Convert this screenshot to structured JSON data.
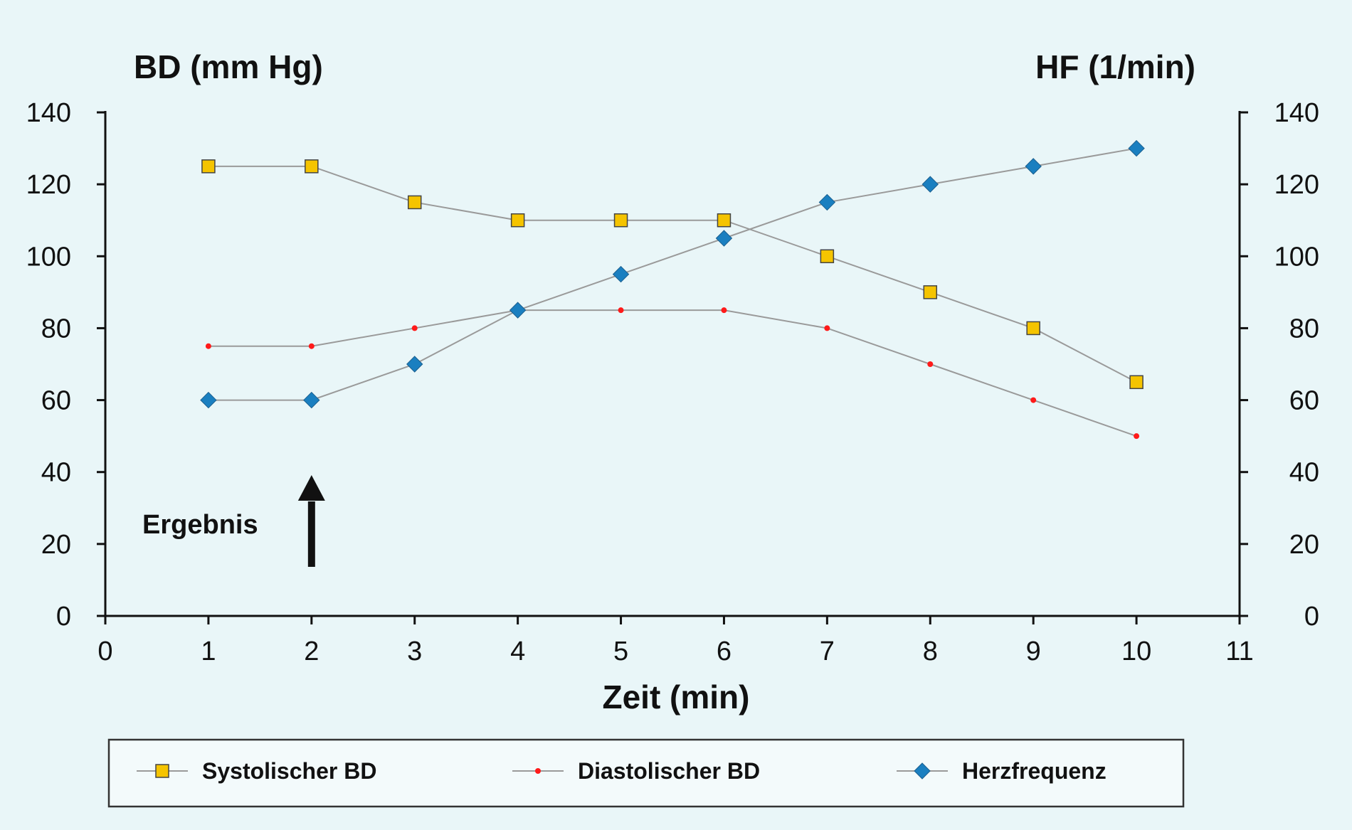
{
  "chart_data": {
    "type": "line",
    "xlabel": "Zeit (min)",
    "ylabel_left": "BD (mm Hg)",
    "ylabel_right": "HF (1/min)",
    "xlim": [
      0,
      11
    ],
    "ylim_left": [
      0,
      140
    ],
    "ylim_right": [
      0,
      140
    ],
    "x_ticks": [
      0,
      1,
      2,
      3,
      4,
      5,
      6,
      7,
      8,
      9,
      10,
      11
    ],
    "y_ticks_left": [
      0,
      20,
      40,
      60,
      80,
      100,
      120,
      140
    ],
    "y_ticks_right": [
      0,
      20,
      40,
      60,
      80,
      100,
      120,
      140
    ],
    "grid": false,
    "legend_position": "bottom",
    "x": [
      1,
      2,
      3,
      4,
      5,
      6,
      7,
      8,
      9,
      10
    ],
    "series": [
      {
        "name": "Systolischer BD",
        "axis": "left",
        "marker": "square",
        "color": "#f5c400",
        "values": [
          125,
          125,
          115,
          110,
          110,
          110,
          100,
          90,
          80,
          65
        ]
      },
      {
        "name": "Diastolischer BD",
        "axis": "left",
        "marker": "dot",
        "color": "#ff1a1a",
        "values": [
          75,
          75,
          80,
          85,
          85,
          85,
          80,
          70,
          60,
          50
        ]
      },
      {
        "name": "Herzfrequenz",
        "axis": "right",
        "marker": "diamond",
        "color": "#1a7fc0",
        "values": [
          60,
          60,
          70,
          85,
          95,
          105,
          115,
          120,
          125,
          130
        ]
      }
    ],
    "annotations": [
      {
        "text": "Ergebnis",
        "arrow_at_x": 2,
        "arrow_direction": "up"
      }
    ],
    "line_color": "#9a9a9a",
    "axis_color": "#111111"
  }
}
